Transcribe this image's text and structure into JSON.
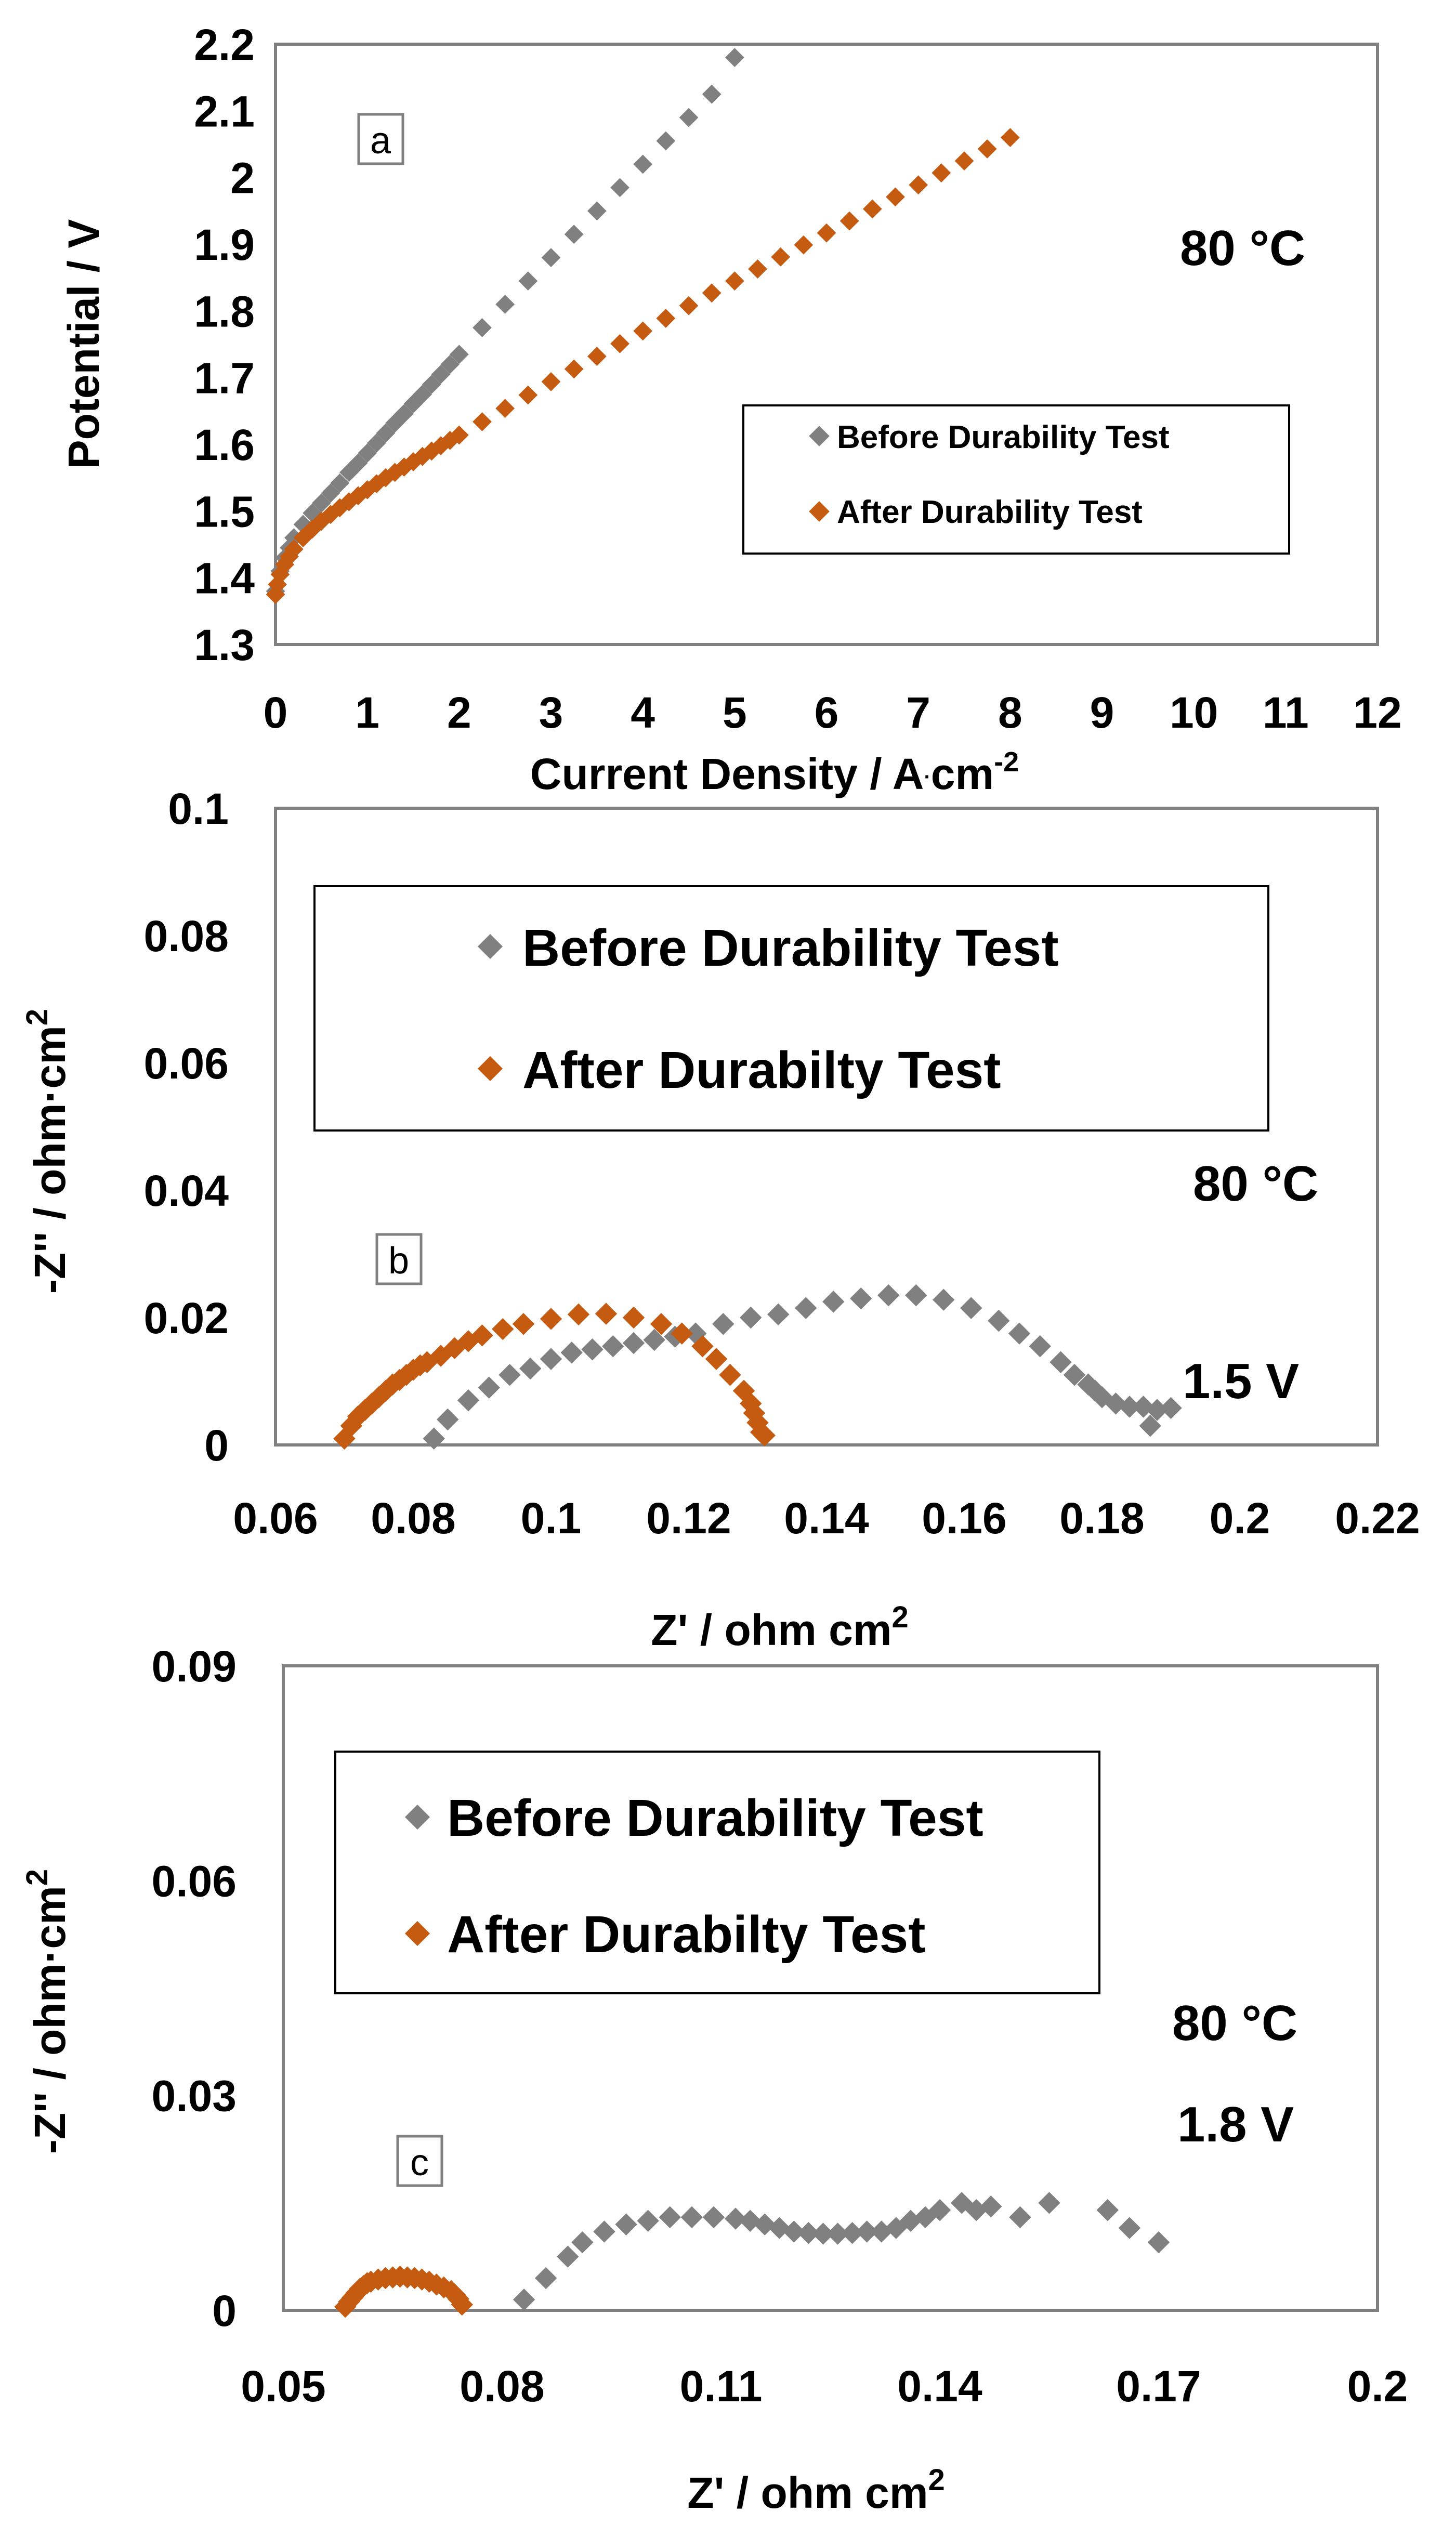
{
  "colors": {
    "before": "#808080",
    "after": "#C55A11",
    "frame": "#808080",
    "text": "#000000"
  },
  "chart_data": [
    {
      "id": "a",
      "type": "scatter",
      "panel_label": "a",
      "title": "",
      "xlabel": "Current Density / A·cm⁻²",
      "xlabel_main": "Current Density / A",
      "xlabel_dot": "·",
      "xlabel_unit": "cm",
      "xlabel_exp": "-2",
      "ylabel": "Potential / V",
      "xlim": [
        0,
        12
      ],
      "ylim": [
        1.3,
        2.2
      ],
      "xticks": [
        0,
        1,
        2,
        3,
        4,
        5,
        6,
        7,
        8,
        9,
        10,
        11,
        12
      ],
      "yticks": [
        1.3,
        1.4,
        1.5,
        1.6,
        1.7,
        1.8,
        1.9,
        2,
        2.1,
        2.2
      ],
      "annotations": [
        "80 °C"
      ],
      "legend": [
        "Before Durability Test",
        "After Durability Test"
      ],
      "series": [
        {
          "name": "Before Durability Test",
          "color": "#808080",
          "x": [
            0.0,
            0.05,
            0.1,
            0.15,
            0.2,
            0.3,
            0.4,
            0.5,
            0.6,
            0.7,
            0.8,
            0.9,
            1.0,
            1.1,
            1.2,
            1.3,
            1.4,
            1.5,
            1.6,
            1.7,
            1.8,
            1.9,
            2.0,
            2.25,
            2.5,
            2.75,
            3.0,
            3.25,
            3.5,
            3.75,
            4.0,
            4.25,
            4.5,
            4.75,
            5.0
          ],
          "y": [
            1.38,
            1.41,
            1.43,
            1.445,
            1.46,
            1.48,
            1.497,
            1.512,
            1.527,
            1.542,
            1.558,
            1.572,
            1.587,
            1.602,
            1.617,
            1.632,
            1.646,
            1.661,
            1.675,
            1.69,
            1.705,
            1.72,
            1.735,
            1.775,
            1.81,
            1.845,
            1.88,
            1.915,
            1.95,
            1.985,
            2.02,
            2.055,
            2.09,
            2.125,
            2.18
          ]
        },
        {
          "name": "After Durability Test",
          "color": "#C55A11",
          "x": [
            0.0,
            0.02,
            0.05,
            0.1,
            0.15,
            0.2,
            0.3,
            0.4,
            0.5,
            0.6,
            0.7,
            0.8,
            0.9,
            1.0,
            1.1,
            1.2,
            1.3,
            1.4,
            1.5,
            1.6,
            1.7,
            1.8,
            1.9,
            2.0,
            2.25,
            2.5,
            2.75,
            3.0,
            3.25,
            3.5,
            3.75,
            4.0,
            4.25,
            4.5,
            4.75,
            5.0,
            5.25,
            5.5,
            5.75,
            6.0,
            6.25,
            6.5,
            6.75,
            7.0,
            7.25,
            7.5,
            7.75,
            8.0
          ],
          "y": [
            1.375,
            1.39,
            1.405,
            1.42,
            1.432,
            1.443,
            1.46,
            1.473,
            1.485,
            1.495,
            1.505,
            1.514,
            1.523,
            1.532,
            1.541,
            1.55,
            1.558,
            1.566,
            1.574,
            1.582,
            1.59,
            1.598,
            1.606,
            1.614,
            1.634,
            1.654,
            1.674,
            1.694,
            1.713,
            1.732,
            1.751,
            1.77,
            1.789,
            1.808,
            1.827,
            1.845,
            1.863,
            1.881,
            1.899,
            1.917,
            1.935,
            1.953,
            1.971,
            1.989,
            2.007,
            2.025,
            2.043,
            2.06
          ]
        }
      ]
    },
    {
      "id": "b",
      "type": "scatter",
      "panel_label": "b",
      "title": "",
      "xlabel": "Z' / ohm cm²",
      "xlabel_main": "Z' / ohm cm",
      "xlabel_exp": "2",
      "ylabel": "-Z'' / ohm·cm²",
      "ylabel_main": "-Z'' / ohm·cm",
      "ylabel_exp": "2",
      "xlim": [
        0.06,
        0.22
      ],
      "ylim": [
        0,
        0.1
      ],
      "xticks": [
        0.06,
        0.08,
        0.1,
        0.12,
        0.14,
        0.16,
        0.18,
        0.2,
        0.22
      ],
      "yticks": [
        0,
        0.02,
        0.04,
        0.06,
        0.08,
        0.1
      ],
      "annotations": [
        "80 °C",
        "1.5 V"
      ],
      "legend": [
        "Before Durability Test",
        "After Durabilty Test"
      ],
      "series": [
        {
          "name": "Before Durability Test",
          "color": "#808080",
          "x": [
            0.083,
            0.085,
            0.088,
            0.091,
            0.094,
            0.097,
            0.1,
            0.103,
            0.106,
            0.109,
            0.112,
            0.115,
            0.118,
            0.121,
            0.125,
            0.129,
            0.133,
            0.137,
            0.141,
            0.145,
            0.149,
            0.153,
            0.157,
            0.161,
            0.165,
            0.168,
            0.171,
            0.174,
            0.176,
            0.178,
            0.179,
            0.18,
            0.182,
            0.184,
            0.186,
            0.188,
            0.19,
            0.187
          ],
          "y": [
            0.001,
            0.004,
            0.007,
            0.009,
            0.011,
            0.012,
            0.0135,
            0.0145,
            0.015,
            0.0155,
            0.016,
            0.0165,
            0.017,
            0.0175,
            0.019,
            0.02,
            0.0205,
            0.0215,
            0.0225,
            0.023,
            0.0235,
            0.0235,
            0.0228,
            0.0215,
            0.0195,
            0.0175,
            0.0155,
            0.013,
            0.011,
            0.0095,
            0.0085,
            0.0075,
            0.0065,
            0.006,
            0.006,
            0.0055,
            0.0058,
            0.003
          ]
        },
        {
          "name": "After Durabilty Test",
          "color": "#C55A11",
          "x": [
            0.07,
            0.071,
            0.072,
            0.073,
            0.074,
            0.075,
            0.076,
            0.077,
            0.078,
            0.079,
            0.08,
            0.081,
            0.082,
            0.084,
            0.086,
            0.088,
            0.09,
            0.093,
            0.096,
            0.1,
            0.104,
            0.108,
            0.112,
            0.116,
            0.119,
            0.122,
            0.124,
            0.126,
            0.128,
            0.129,
            0.1295,
            0.13,
            0.1305,
            0.131
          ],
          "y": [
            0.001,
            0.003,
            0.0045,
            0.0055,
            0.0065,
            0.0075,
            0.0085,
            0.0095,
            0.0102,
            0.011,
            0.0118,
            0.0125,
            0.013,
            0.014,
            0.0152,
            0.0163,
            0.0172,
            0.0182,
            0.019,
            0.0198,
            0.0205,
            0.0206,
            0.02,
            0.019,
            0.0175,
            0.0155,
            0.0135,
            0.011,
            0.0085,
            0.0065,
            0.005,
            0.0035,
            0.002,
            0.0015
          ]
        }
      ]
    },
    {
      "id": "c",
      "type": "scatter",
      "panel_label": "c",
      "title": "",
      "xlabel": "Z' / ohm cm²",
      "xlabel_main": "Z' / ohm cm",
      "xlabel_exp": "2",
      "ylabel": "-Z'' / ohm·cm²",
      "ylabel_main": "-Z'' / ohm·cm",
      "ylabel_exp": "2",
      "xlim": [
        0.05,
        0.2
      ],
      "ylim": [
        0,
        0.09
      ],
      "xticks": [
        0.05,
        0.08,
        0.11,
        0.14,
        0.17,
        0.2
      ],
      "yticks": [
        0,
        0.03,
        0.06,
        0.09
      ],
      "annotations": [
        "80 °C",
        "1.8 V"
      ],
      "legend": [
        "Before Durability Test",
        "After Durabilty Test"
      ],
      "series": [
        {
          "name": "Before Durability Test",
          "color": "#808080",
          "x": [
            0.083,
            0.086,
            0.089,
            0.091,
            0.094,
            0.097,
            0.1,
            0.103,
            0.106,
            0.109,
            0.112,
            0.114,
            0.116,
            0.118,
            0.12,
            0.122,
            0.124,
            0.126,
            0.128,
            0.13,
            0.132,
            0.134,
            0.136,
            0.138,
            0.14,
            0.143,
            0.145,
            0.147,
            0.151,
            0.155,
            0.163,
            0.166,
            0.17
          ],
          "y": [
            0.0015,
            0.0045,
            0.0075,
            0.0095,
            0.011,
            0.012,
            0.0125,
            0.013,
            0.013,
            0.013,
            0.0128,
            0.0125,
            0.012,
            0.0115,
            0.011,
            0.0108,
            0.0107,
            0.0107,
            0.0108,
            0.011,
            0.011,
            0.0115,
            0.0125,
            0.013,
            0.014,
            0.015,
            0.014,
            0.0145,
            0.013,
            0.015,
            0.014,
            0.0115,
            0.0095
          ]
        },
        {
          "name": "After Durabilty Test",
          "color": "#C55A11",
          "x": [
            0.0585,
            0.059,
            0.0595,
            0.06,
            0.0605,
            0.061,
            0.0615,
            0.062,
            0.063,
            0.064,
            0.065,
            0.066,
            0.067,
            0.068,
            0.069,
            0.07,
            0.071,
            0.072,
            0.073,
            0.0735,
            0.074,
            0.0745
          ],
          "y": [
            0.0005,
            0.0012,
            0.0018,
            0.0024,
            0.003,
            0.0034,
            0.0038,
            0.004,
            0.0043,
            0.0045,
            0.0046,
            0.0047,
            0.0046,
            0.0045,
            0.0043,
            0.004,
            0.0036,
            0.0032,
            0.0027,
            0.0022,
            0.0016,
            0.0008
          ]
        }
      ]
    }
  ]
}
